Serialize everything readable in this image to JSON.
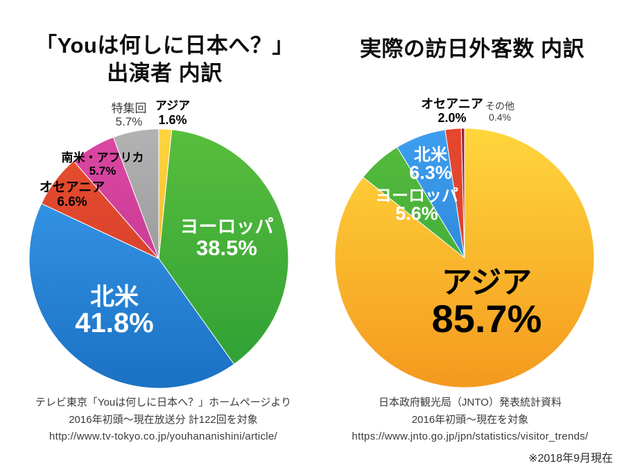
{
  "chart_data": [
    {
      "type": "pie",
      "title": "「Youは何しに日本へ？」 出演者 内訳",
      "title_lines": [
        "「Youは何しに日本へ？」",
        "出演者 内訳"
      ],
      "unit": "%",
      "start_angle_deg": 0,
      "direction": "clockwise-from-top",
      "legend_position": "none",
      "slices": [
        {
          "name": "asia",
          "label": "アジア",
          "value": 1.6,
          "pct_text": "1.6%",
          "color_top": "#FFD53E",
          "color_bottom": "#F2A52A"
        },
        {
          "name": "europe",
          "label": "ヨーロッパ",
          "value": 38.5,
          "pct_text": "38.5%",
          "color_top": "#58BE3D",
          "color_bottom": "#2D9E34"
        },
        {
          "name": "north-america",
          "label": "北米",
          "value": 41.8,
          "pct_text": "41.8%",
          "color_top": "#3C9EF0",
          "color_bottom": "#1B71C3"
        },
        {
          "name": "oceania",
          "label": "オセアニア",
          "value": 6.6,
          "pct_text": "6.6%",
          "color_top": "#E84F2F",
          "color_bottom": "#CC372A"
        },
        {
          "name": "south-america-africa",
          "label": "南米・アフリカ",
          "value": 5.7,
          "pct_text": "5.7%",
          "color_top": "#DB47A1",
          "color_bottom": "#B9338E"
        },
        {
          "name": "special-episodes",
          "label": "特集回",
          "value": 5.7,
          "pct_text": "5.7%",
          "color_top": "#B3B3B3",
          "color_bottom": "#848484"
        }
      ],
      "source_lines": [
        "テレビ東京「Youは何しに日本へ？」ホームページより",
        "2016年初頭～現在放送分 計122回を対象",
        "http://www.tv-tokyo.co.jp/youhananishini/article/"
      ]
    },
    {
      "type": "pie",
      "title": "実際の訪日外客数 内訳",
      "title_lines": [
        "実際の訪日外客数 内訳"
      ],
      "unit": "%",
      "start_angle_deg": 0,
      "direction": "clockwise-from-top",
      "legend_position": "none",
      "slices": [
        {
          "name": "asia",
          "label": "アジア",
          "value": 85.7,
          "pct_text": "85.7%",
          "color_top": "#FFD63C",
          "color_bottom": "#F4991E"
        },
        {
          "name": "europe",
          "label": "ヨーロッパ",
          "value": 5.6,
          "pct_text": "5.6%",
          "color_top": "#55BB3C",
          "color_bottom": "#36A438"
        },
        {
          "name": "north-america",
          "label": "北米",
          "value": 6.3,
          "pct_text": "6.3%",
          "color_top": "#3E9EEF",
          "color_bottom": "#2277CC"
        },
        {
          "name": "oceania",
          "label": "オセアニア",
          "value": 2.0,
          "pct_text": "2.0%",
          "color_top": "#E5482E",
          "color_bottom": "#D23A2B"
        },
        {
          "name": "other",
          "label": "その他",
          "value": 0.4,
          "pct_text": "0.4%",
          "color_top": "#93243C",
          "color_bottom": "#7C1C2F"
        }
      ],
      "source_lines": [
        "日本政府観光局（JNTO）発表統計資料",
        "2016年初頭～現在を対象",
        "https://www.jnto.go.jp/jpn/statistics/visitor_trends/"
      ]
    }
  ],
  "footnote": "※2018年9月現在"
}
